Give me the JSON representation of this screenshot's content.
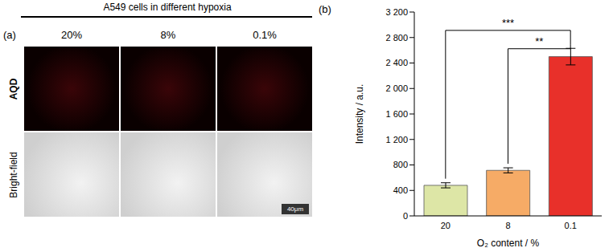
{
  "panel_a": {
    "panel": "(a)",
    "title": "A549 cells in different hypoxia",
    "columns": [
      "20%",
      "8%",
      "0.1%"
    ],
    "rows": [
      "AQD",
      "Bright-field"
    ],
    "scale_bar": "40μm"
  },
  "chart_data": {
    "type": "bar",
    "panel": "(b)",
    "x_label": "O₂ content / %",
    "y_label": "Intensity / a.u.",
    "categories": [
      "20",
      "8",
      "0.1"
    ],
    "values": [
      480,
      715,
      2500
    ],
    "errors": [
      40,
      40,
      130
    ],
    "colors": [
      "#dde6a6",
      "#f6ab66",
      "#e8302a"
    ],
    "ylim": [
      0,
      3200
    ],
    "yticks": [
      0,
      400,
      800,
      {
        "value": 1200,
        "label": "1 200"
      },
      {
        "value": 1600,
        "label": "1 600"
      },
      {
        "value": 2000,
        "label": "2 000"
      },
      {
        "value": 2400,
        "label": "2 400"
      },
      {
        "value": 2800,
        "label": "2 800"
      },
      {
        "value": 3200,
        "label": "3 200"
      }
    ],
    "annotations": [
      {
        "text": "***",
        "from": "20",
        "to": "0.1"
      },
      {
        "text": "**",
        "from": "8",
        "to": "0.1"
      }
    ]
  }
}
